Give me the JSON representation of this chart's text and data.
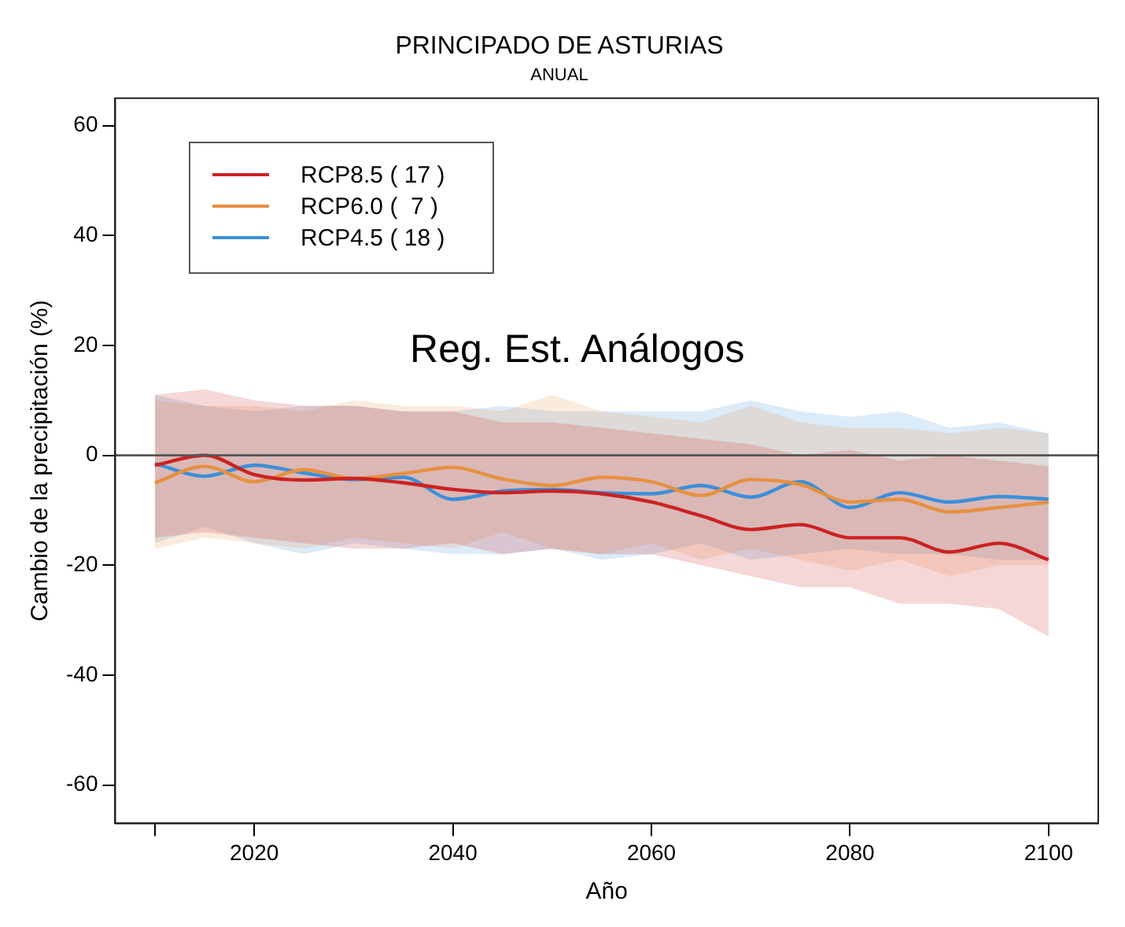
{
  "chart_data": {
    "type": "line",
    "title": "PRINCIPADO DE ASTURIAS",
    "subtitle": "ANUAL",
    "xlabel": "Año",
    "ylabel": "Cambio de la precipitación (%)",
    "annotations": [
      "Reg. Est. Análogos"
    ],
    "x": [
      2010,
      2015,
      2020,
      2025,
      2030,
      2035,
      2040,
      2045,
      2050,
      2055,
      2060,
      2065,
      2070,
      2075,
      2080,
      2085,
      2090,
      2095,
      2100
    ],
    "series": [
      {
        "name": "RCP8.5 ( 17 )",
        "color": "#cc2222",
        "values": [
          -1.8,
          0,
          -3.5,
          -4.5,
          -4.2,
          -5,
          -6.2,
          -6.8,
          -6.5,
          -7,
          -8.5,
          -11,
          -13.5,
          -12.6,
          -15,
          -15,
          -17.6,
          -16,
          -19
        ],
        "upper": [
          11,
          12,
          10,
          9,
          9,
          8,
          8,
          6,
          6,
          5,
          4,
          3,
          2,
          0,
          1,
          -1,
          0,
          -1,
          -2
        ],
        "lower": [
          -15,
          -14,
          -15,
          -16,
          -17,
          -17,
          -16,
          -18,
          -17,
          -18,
          -18,
          -20,
          -22,
          -24,
          -24,
          -27,
          -27,
          -28,
          -33
        ]
      },
      {
        "name": "RCP6.0 (  7 )",
        "color": "#e69040",
        "values": [
          -5,
          -2,
          -4.8,
          -2.6,
          -4.2,
          -3.3,
          -2.2,
          -4.3,
          -5.5,
          -4,
          -4.8,
          -7.3,
          -4.4,
          -5.3,
          -8.5,
          -8,
          -10.3,
          -9.5,
          -8.5
        ],
        "upper": [
          10,
          9,
          9,
          8,
          10,
          9,
          9,
          8,
          11,
          8,
          7,
          6,
          9,
          6,
          5,
          5,
          4,
          5,
          4
        ],
        "lower": [
          -17,
          -15,
          -16,
          -17,
          -15,
          -16,
          -17,
          -14,
          -17,
          -18,
          -16,
          -19,
          -17,
          -19,
          -21,
          -19,
          -22,
          -20,
          -20
        ]
      },
      {
        "name": "RCP4.5 ( 18 )",
        "color": "#3b8fd9",
        "values": [
          -1.5,
          -3.8,
          -1.8,
          -3.2,
          -4.4,
          -4,
          -8,
          -6.5,
          -6.2,
          -6.8,
          -7,
          -5.5,
          -7.6,
          -4.8,
          -9.5,
          -6.8,
          -8.5,
          -7.5,
          -8
        ],
        "upper": [
          11,
          9,
          8,
          9,
          9,
          8,
          8,
          9,
          8,
          8,
          8,
          8,
          10,
          8,
          7,
          8,
          5,
          6,
          4
        ],
        "lower": [
          -16,
          -13,
          -16,
          -18,
          -16,
          -17,
          -18,
          -18,
          -17,
          -19,
          -18,
          -16,
          -19,
          -18,
          -17,
          -18,
          -18,
          -19,
          -19
        ]
      }
    ],
    "xlim": [
      2006,
      2105
    ],
    "xticks": [
      {
        "value": 2010,
        "label": null
      },
      2020,
      2040,
      2060,
      2080,
      2100
    ],
    "ylim": [
      -67,
      65
    ],
    "yticks": [
      -60,
      -40,
      -20,
      0,
      20,
      40,
      60
    ],
    "ref_lines": [
      {
        "axis": "y",
        "value": 0,
        "color": "#555555"
      }
    ],
    "legend": "top left",
    "grid": false
  }
}
